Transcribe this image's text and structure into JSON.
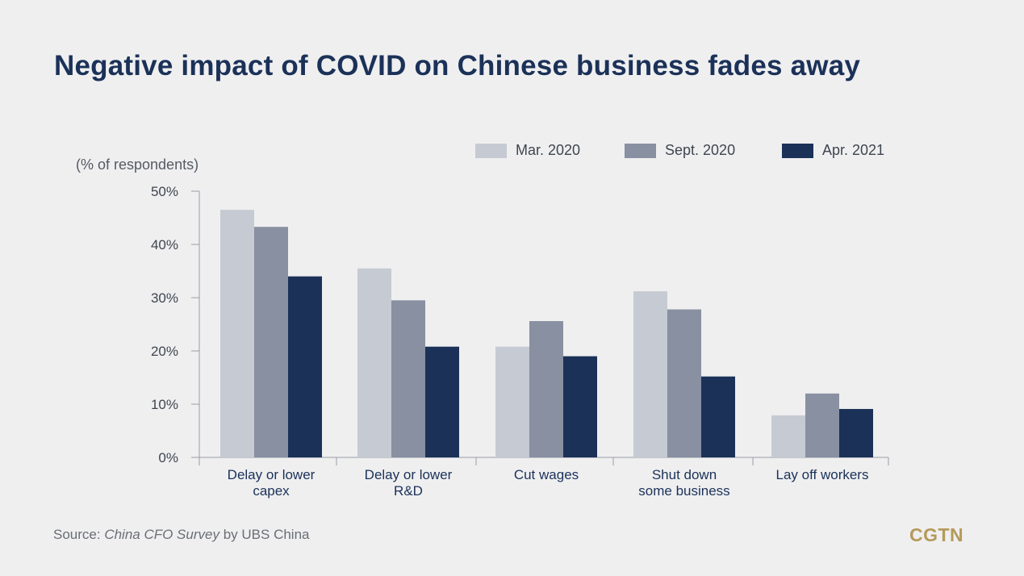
{
  "header": {
    "title": "Negative impact of COVID on Chinese business fades away"
  },
  "chart_data": {
    "type": "bar",
    "title": "Negative impact of COVID on Chinese business fades away",
    "ylabel": "(% of respondents)",
    "xlabel": "",
    "categories": [
      [
        "Delay or lower",
        "capex"
      ],
      [
        "Delay or lower",
        "R&D"
      ],
      [
        "Cut wages"
      ],
      [
        "Shut down",
        "some business"
      ],
      [
        "Lay off workers"
      ]
    ],
    "series": [
      {
        "name": "Mar. 2020",
        "color": "#c6cad2",
        "values": [
          46.5,
          35.5,
          20.8,
          31.2,
          7.9
        ]
      },
      {
        "name": "Sept. 2020",
        "color": "#8890a1",
        "values": [
          43.3,
          29.5,
          25.6,
          27.8,
          12.0
        ]
      },
      {
        "name": "Apr. 2021",
        "color": "#1b3158",
        "values": [
          34.0,
          20.8,
          19.0,
          15.2,
          9.1
        ]
      }
    ],
    "ylim": [
      0,
      50
    ],
    "yticks": [
      0,
      10,
      20,
      30,
      40,
      50
    ],
    "ytick_labels": [
      "0%",
      "10%",
      "20%",
      "30%",
      "40%",
      "50%"
    ],
    "legend_position": "top-right",
    "grid": false
  },
  "footer": {
    "source_prefix": "Source: ",
    "source_italic": "China CFO Survey",
    "source_suffix": " by UBS China",
    "logo_text": "CGTN"
  }
}
